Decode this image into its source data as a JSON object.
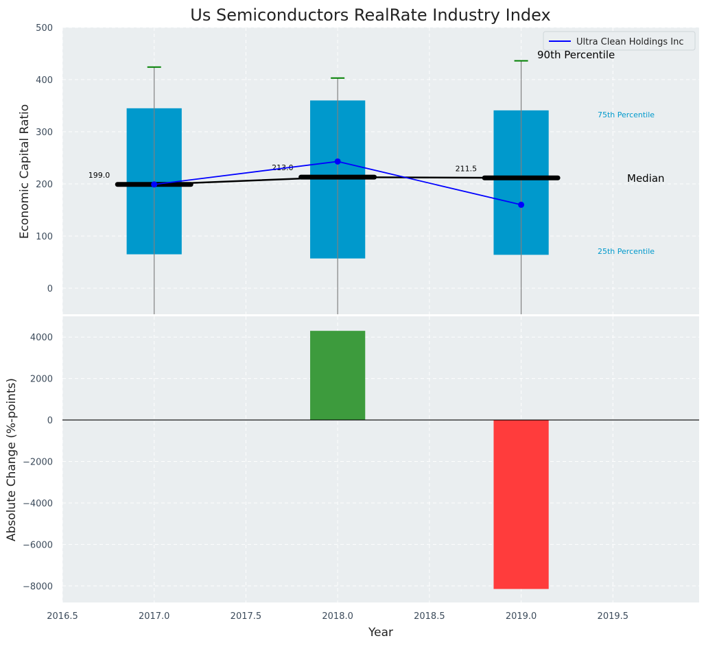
{
  "colors": {
    "panel_bg": "#eaeef0",
    "box": "#0099cc",
    "median": "#000000",
    "series": "#0000ff",
    "p90_cap": "#008000",
    "whisker": "#808080",
    "positive": "#3d9b3d",
    "negative": "#ff3c3c",
    "percentile_label": "#0099cc"
  },
  "chart_data": [
    {
      "type": "box",
      "title": "Us Semiconductors RealRate Industry Index",
      "ylabel": "Economic Capital Ratio",
      "ylim": [
        -50,
        500
      ],
      "yticks": [
        0,
        100,
        200,
        300,
        400,
        500
      ],
      "grid": true,
      "legend": {
        "placement": "top-right",
        "entries": [
          "Ultra Clean Holdings Inc"
        ]
      },
      "x": [
        2017.0,
        2018.0,
        2019.0
      ],
      "p25": [
        65,
        57,
        64
      ],
      "p75": [
        345,
        360,
        341
      ],
      "median": [
        199.0,
        213.0,
        211.5
      ],
      "median_labels": [
        "199.0",
        "213.0",
        "211.5"
      ],
      "p90": [
        424,
        403,
        436
      ],
      "series": [
        {
          "name": "Ultra Clean Holdings Inc",
          "x": [
            2017.0,
            2018.0,
            2019.0
          ],
          "values": [
            199,
            243,
            160
          ]
        }
      ],
      "annotations": {
        "p90": "90th Percentile",
        "p75": "75th Percentile",
        "median": "Median",
        "p25": "25th Percentile"
      }
    },
    {
      "type": "bar",
      "xlabel": "Year",
      "ylabel": "Absolute Change (%-points)",
      "ylim": [
        -8800,
        5000
      ],
      "yticks": [
        -8000,
        -6000,
        -4000,
        -2000,
        0,
        2000,
        4000
      ],
      "xlim": [
        2016.5,
        2019.97
      ],
      "xticks": [
        2016.5,
        2017.0,
        2017.5,
        2018.0,
        2018.5,
        2019.0,
        2019.5
      ],
      "xtick_labels": [
        "2016.5",
        "2017.0",
        "2017.5",
        "2018.0",
        "2018.5",
        "2019.0",
        "2019.5"
      ],
      "grid": true,
      "x": [
        2018.0,
        2019.0
      ],
      "values": [
        4300,
        -8150
      ]
    }
  ]
}
